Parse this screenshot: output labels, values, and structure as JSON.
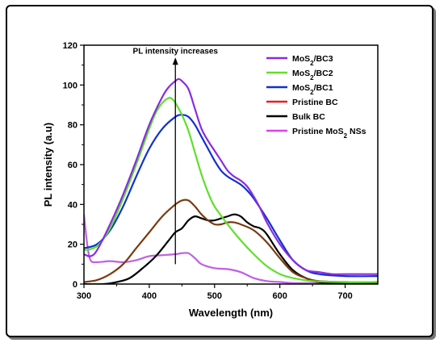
{
  "chart_data": {
    "type": "line",
    "title": "",
    "xlabel": "Wavelength (nm)",
    "ylabel": "PL intensity (a.u)",
    "xlim": [
      300,
      750
    ],
    "ylim": [
      0,
      120
    ],
    "x_ticks": [
      300,
      400,
      500,
      600,
      700
    ],
    "y_ticks": [
      0,
      20,
      40,
      60,
      80,
      100,
      120
    ],
    "grid": false,
    "legend_position": "top-right",
    "annotation": {
      "text": "PL intensity increases",
      "arrow_x": 440,
      "arrow_from_y": 10,
      "arrow_to_y": 113
    },
    "series": [
      {
        "name": "MoS2/BC3",
        "name_main": "MoS",
        "name_sub": "2",
        "name_rest": "/BC3",
        "color": "#8a2be2",
        "x": [
          300,
          310,
          320,
          340,
          360,
          380,
          400,
          420,
          430,
          440,
          445,
          450,
          460,
          470,
          480,
          490,
          500,
          510,
          520,
          530,
          540,
          550,
          560,
          570,
          580,
          600,
          620,
          640,
          660,
          680,
          700,
          750
        ],
        "y": [
          15,
          14,
          17,
          30,
          45,
          62,
          80,
          94,
          99,
          102,
          103,
          102,
          98,
          88,
          78,
          72,
          67,
          62,
          57,
          54,
          52,
          49,
          44,
          38,
          31,
          20,
          12,
          7,
          6,
          5,
          5,
          5
        ]
      },
      {
        "name": "MoS2/BC2",
        "name_main": "MoS",
        "name_sub": "2",
        "name_rest": "/BC2",
        "color": "#5ee02a",
        "x": [
          300,
          320,
          340,
          360,
          380,
          400,
          410,
          420,
          430,
          435,
          440,
          450,
          460,
          470,
          480,
          490,
          500,
          520,
          540,
          560,
          580,
          600,
          620,
          650,
          700,
          750
        ],
        "y": [
          17,
          19,
          28,
          43,
          60,
          78,
          86,
          91,
          93.5,
          93,
          91,
          85,
          77,
          66,
          55,
          46,
          39,
          30,
          22,
          15,
          9,
          5,
          3,
          1.5,
          1,
          1
        ]
      },
      {
        "name": "MoS2/BC1",
        "name_main": "MoS",
        "name_sub": "2",
        "name_rest": "/BC1",
        "color": "#1030d0",
        "x": [
          300,
          320,
          340,
          360,
          380,
          400,
          420,
          440,
          450,
          460,
          470,
          480,
          490,
          500,
          510,
          520,
          530,
          540,
          550,
          560,
          580,
          600,
          620,
          640,
          660,
          700,
          750
        ],
        "y": [
          18,
          20,
          27,
          39,
          54,
          68,
          78,
          84,
          85,
          84,
          80,
          74,
          68,
          62,
          57,
          54,
          52,
          50,
          47,
          43,
          33,
          22,
          12,
          7,
          5,
          4,
          4
        ]
      },
      {
        "name": "Pristine BC",
        "name_main": "Pristine BC",
        "name_sub": "",
        "name_rest": "",
        "color": "#e82020",
        "draw_color": "#7a3a10",
        "x": [
          300,
          320,
          340,
          360,
          380,
          400,
          420,
          440,
          450,
          460,
          470,
          480,
          490,
          500,
          510,
          520,
          530,
          540,
          560,
          580,
          600,
          620,
          640,
          660,
          700,
          750
        ],
        "y": [
          1,
          2,
          5,
          10,
          18,
          26,
          34,
          40,
          42,
          42,
          39,
          35,
          32,
          30,
          30,
          31,
          31,
          30,
          27,
          21,
          13,
          6,
          3,
          1.5,
          1,
          1
        ]
      },
      {
        "name": "Bulk BC",
        "name_main": "Bulk BC",
        "name_sub": "",
        "name_rest": "",
        "color": "#000000",
        "x": [
          300,
          330,
          350,
          370,
          390,
          410,
          430,
          440,
          450,
          460,
          470,
          480,
          490,
          500,
          510,
          520,
          530,
          540,
          550,
          560,
          570,
          580,
          600,
          620,
          640,
          660,
          700,
          750
        ],
        "y": [
          0,
          0,
          1,
          3,
          8,
          14,
          22,
          26,
          28,
          32,
          34,
          33,
          32,
          32,
          33,
          34,
          35,
          34,
          31,
          29,
          28,
          25,
          15,
          7,
          3,
          1,
          0.5,
          0.5
        ]
      },
      {
        "name": "Pristine MoS2 NSs",
        "name_main": "Pristine MoS",
        "name_sub": "2",
        "name_rest": " NSs",
        "color": "#e040f0",
        "draw_color": "#c060e0",
        "x": [
          300,
          305,
          310,
          320,
          340,
          360,
          380,
          400,
          420,
          440,
          450,
          460,
          470,
          480,
          500,
          520,
          540,
          560,
          580,
          600,
          620,
          650,
          700,
          750
        ],
        "y": [
          35,
          20,
          12,
          11,
          11.5,
          11,
          12,
          14,
          14.5,
          15,
          15.5,
          15.5,
          13,
          10,
          8,
          7.5,
          6,
          3,
          1.5,
          1,
          0.5,
          0.5,
          0.5,
          0.5
        ]
      }
    ]
  }
}
